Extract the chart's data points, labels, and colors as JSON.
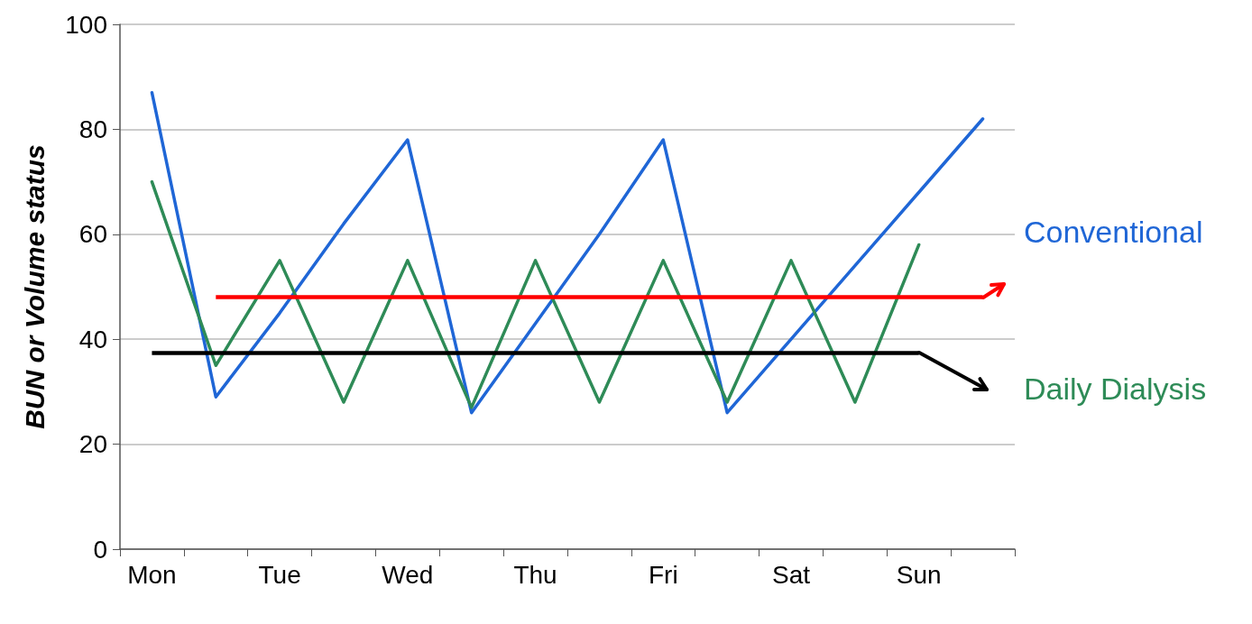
{
  "chart_data": {
    "type": "line",
    "ylabel": "BUN or Volume status",
    "categories": [
      "Mon",
      null,
      "Tue",
      null,
      "Wed",
      null,
      "Thu",
      null,
      "Fri",
      null,
      "Sat",
      null,
      "Sun",
      null
    ],
    "series": [
      {
        "name": "Conventional",
        "color": "#1f66d6",
        "values": [
          87,
          29,
          45,
          62,
          78,
          26,
          43,
          60,
          78,
          26,
          40,
          54,
          68,
          82
        ]
      },
      {
        "name": "Daily Dialysis",
        "color": "#2e8b57",
        "values": [
          70,
          35,
          55,
          28,
          55,
          27,
          55,
          28,
          55,
          28,
          55,
          28,
          58,
          null
        ]
      }
    ],
    "ylim": [
      0,
      100
    ],
    "yticks": [
      0,
      20,
      40,
      60,
      80,
      100
    ],
    "grid": "y",
    "legend": false,
    "marker": "none",
    "line_style": "solid",
    "ref_lines": [
      {
        "axis": "y",
        "value": 48,
        "color": "#ff0000"
      },
      {
        "axis": "y",
        "value": 37.5,
        "color": "#000000"
      }
    ]
  }
}
